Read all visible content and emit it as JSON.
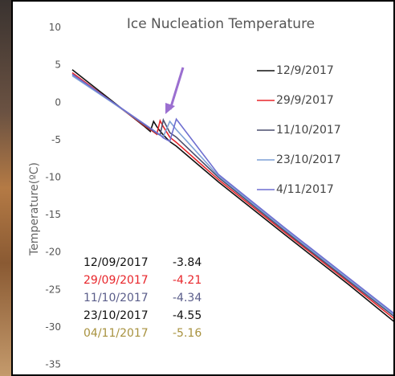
{
  "chart_data": {
    "type": "line",
    "title": "Ice Nucleation Temperature",
    "y_label": "Temperature(ºC)",
    "ylim": [
      -36.5,
      13.5
    ],
    "yticks": [
      10,
      5,
      0,
      -5,
      -10,
      -15,
      -20,
      -25,
      -30,
      -35
    ],
    "xlim": [
      0,
      100
    ],
    "x": [
      0,
      22,
      24,
      25,
      26,
      27,
      28,
      30,
      32,
      45,
      65,
      85,
      100
    ],
    "series": [
      {
        "name": "12/9/2017",
        "color": "#111111",
        "values": [
          4.4,
          -3.1,
          -3.84,
          -2.5,
          -3.2,
          -3.8,
          -4.3,
          -5.2,
          -5.8,
          -10.6,
          -17.5,
          -24.3,
          -29.6
        ]
      },
      {
        "name": "29/9/2017",
        "color": "#e8262b",
        "values": [
          4.0,
          -3.0,
          -3.6,
          -3.9,
          -4.21,
          -2.4,
          -3.2,
          -4.6,
          -5.3,
          -10.3,
          -17.2,
          -24.0,
          -29.2
        ]
      },
      {
        "name": "11/10/2017",
        "color": "#4b4f6e",
        "values": [
          3.8,
          -2.9,
          -3.5,
          -3.8,
          -4.1,
          -4.34,
          -2.3,
          -4.0,
          -4.6,
          -10.0,
          -17.0,
          -23.8,
          -28.9
        ]
      },
      {
        "name": "23/10/2017",
        "color": "#7d9fd6",
        "values": [
          3.6,
          -2.8,
          -3.4,
          -3.7,
          -4.0,
          -4.3,
          -4.55,
          -2.5,
          -3.6,
          -9.8,
          -16.8,
          -23.6,
          -28.7
        ]
      },
      {
        "name": "4/11/2017",
        "color": "#6e6fd0",
        "values": [
          3.8,
          -2.8,
          -3.4,
          -3.7,
          -4.0,
          -4.3,
          -4.7,
          -5.16,
          -2.2,
          -9.6,
          -16.6,
          -23.4,
          -28.5
        ]
      }
    ],
    "nucleation_table": [
      {
        "date": "12/09/2017",
        "value": -3.84,
        "color": "#111111"
      },
      {
        "date": "29/09/2017",
        "value": -4.21,
        "color": "#e8262b"
      },
      {
        "date": "11/10/2017",
        "value": -4.34,
        "color": "#5a5d8a"
      },
      {
        "date": "23/10/2017",
        "value": -4.55,
        "color": "#111111"
      },
      {
        "date": "04/11/2017",
        "value": -5.16,
        "color": "#a8923f"
      }
    ]
  }
}
